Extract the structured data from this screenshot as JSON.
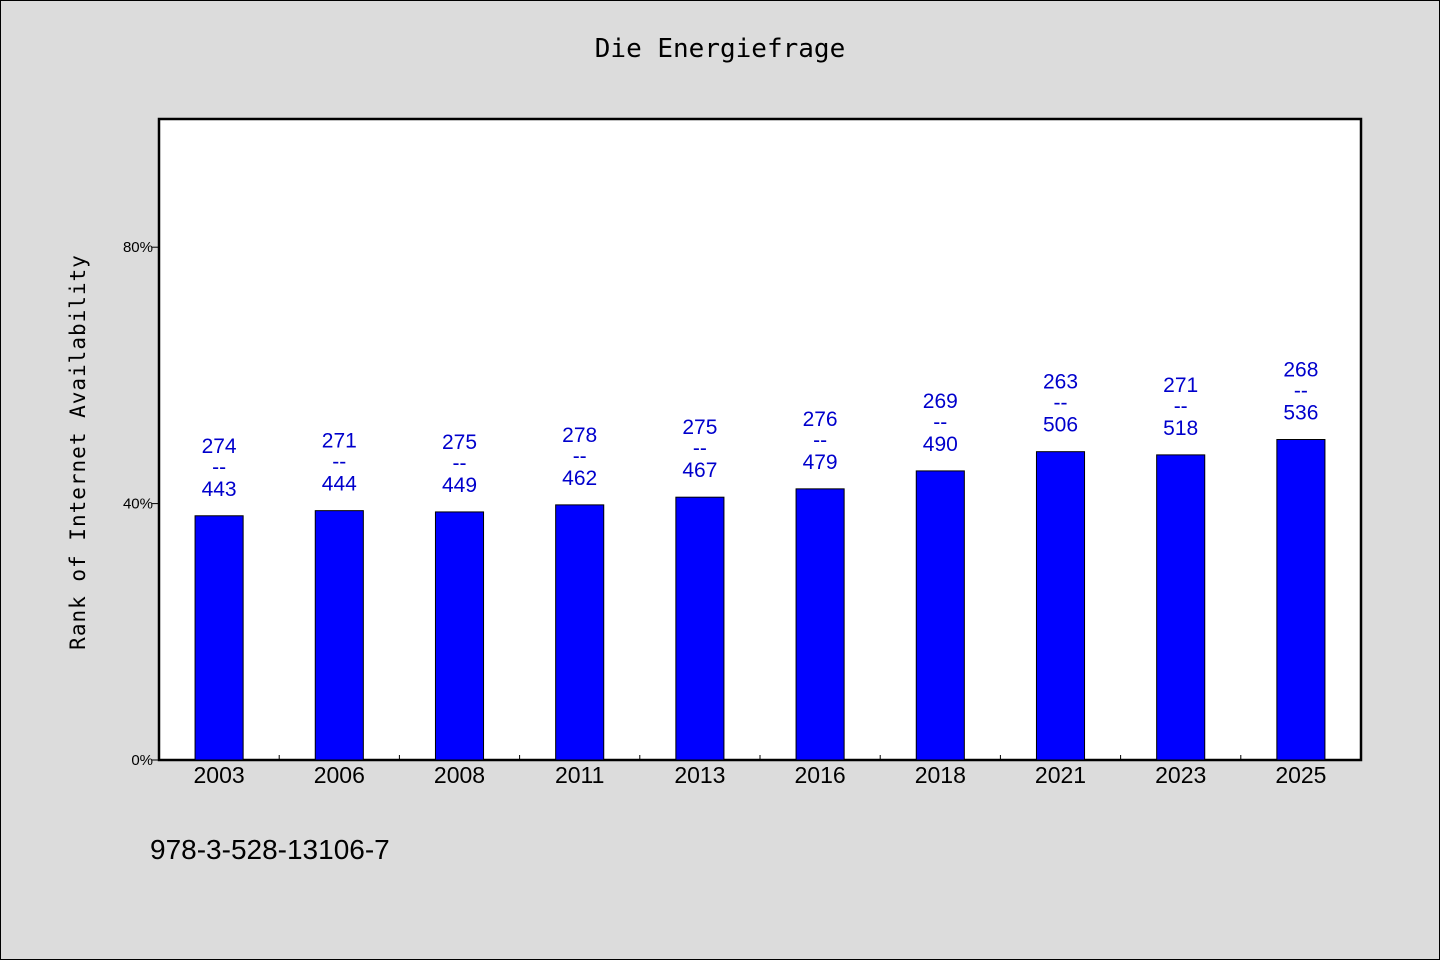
{
  "title": "Die Energiefrage",
  "footnote": "978-3-528-13106-7",
  "chart_data": {
    "type": "bar",
    "title": "Die Energiefrage",
    "xlabel": "",
    "ylabel": "Rank of Internet Availability",
    "categories": [
      "2003",
      "2006",
      "2008",
      "2011",
      "2013",
      "2016",
      "2018",
      "2021",
      "2023",
      "2025"
    ],
    "values": [
      38.1,
      38.9,
      38.7,
      39.8,
      41.0,
      42.3,
      45.1,
      48.1,
      47.6,
      50.0
    ],
    "value_unit": "%",
    "label_top": [
      "274",
      "271",
      "275",
      "278",
      "275",
      "276",
      "269",
      "263",
      "271",
      "268"
    ],
    "label_separator": "--",
    "label_bottom": [
      "443",
      "444",
      "449",
      "462",
      "467",
      "479",
      "490",
      "506",
      "518",
      "536"
    ],
    "ylim": [
      0,
      100
    ],
    "yticks": [
      0,
      40,
      80
    ],
    "ytick_labels": [
      "0%",
      "40%",
      "80%"
    ],
    "bar_color": "#0000ff",
    "label_color": "#0000cc",
    "plot_background": "#ffffff",
    "page_background": "#dcdcdc",
    "grid": false,
    "legend": "none"
  }
}
